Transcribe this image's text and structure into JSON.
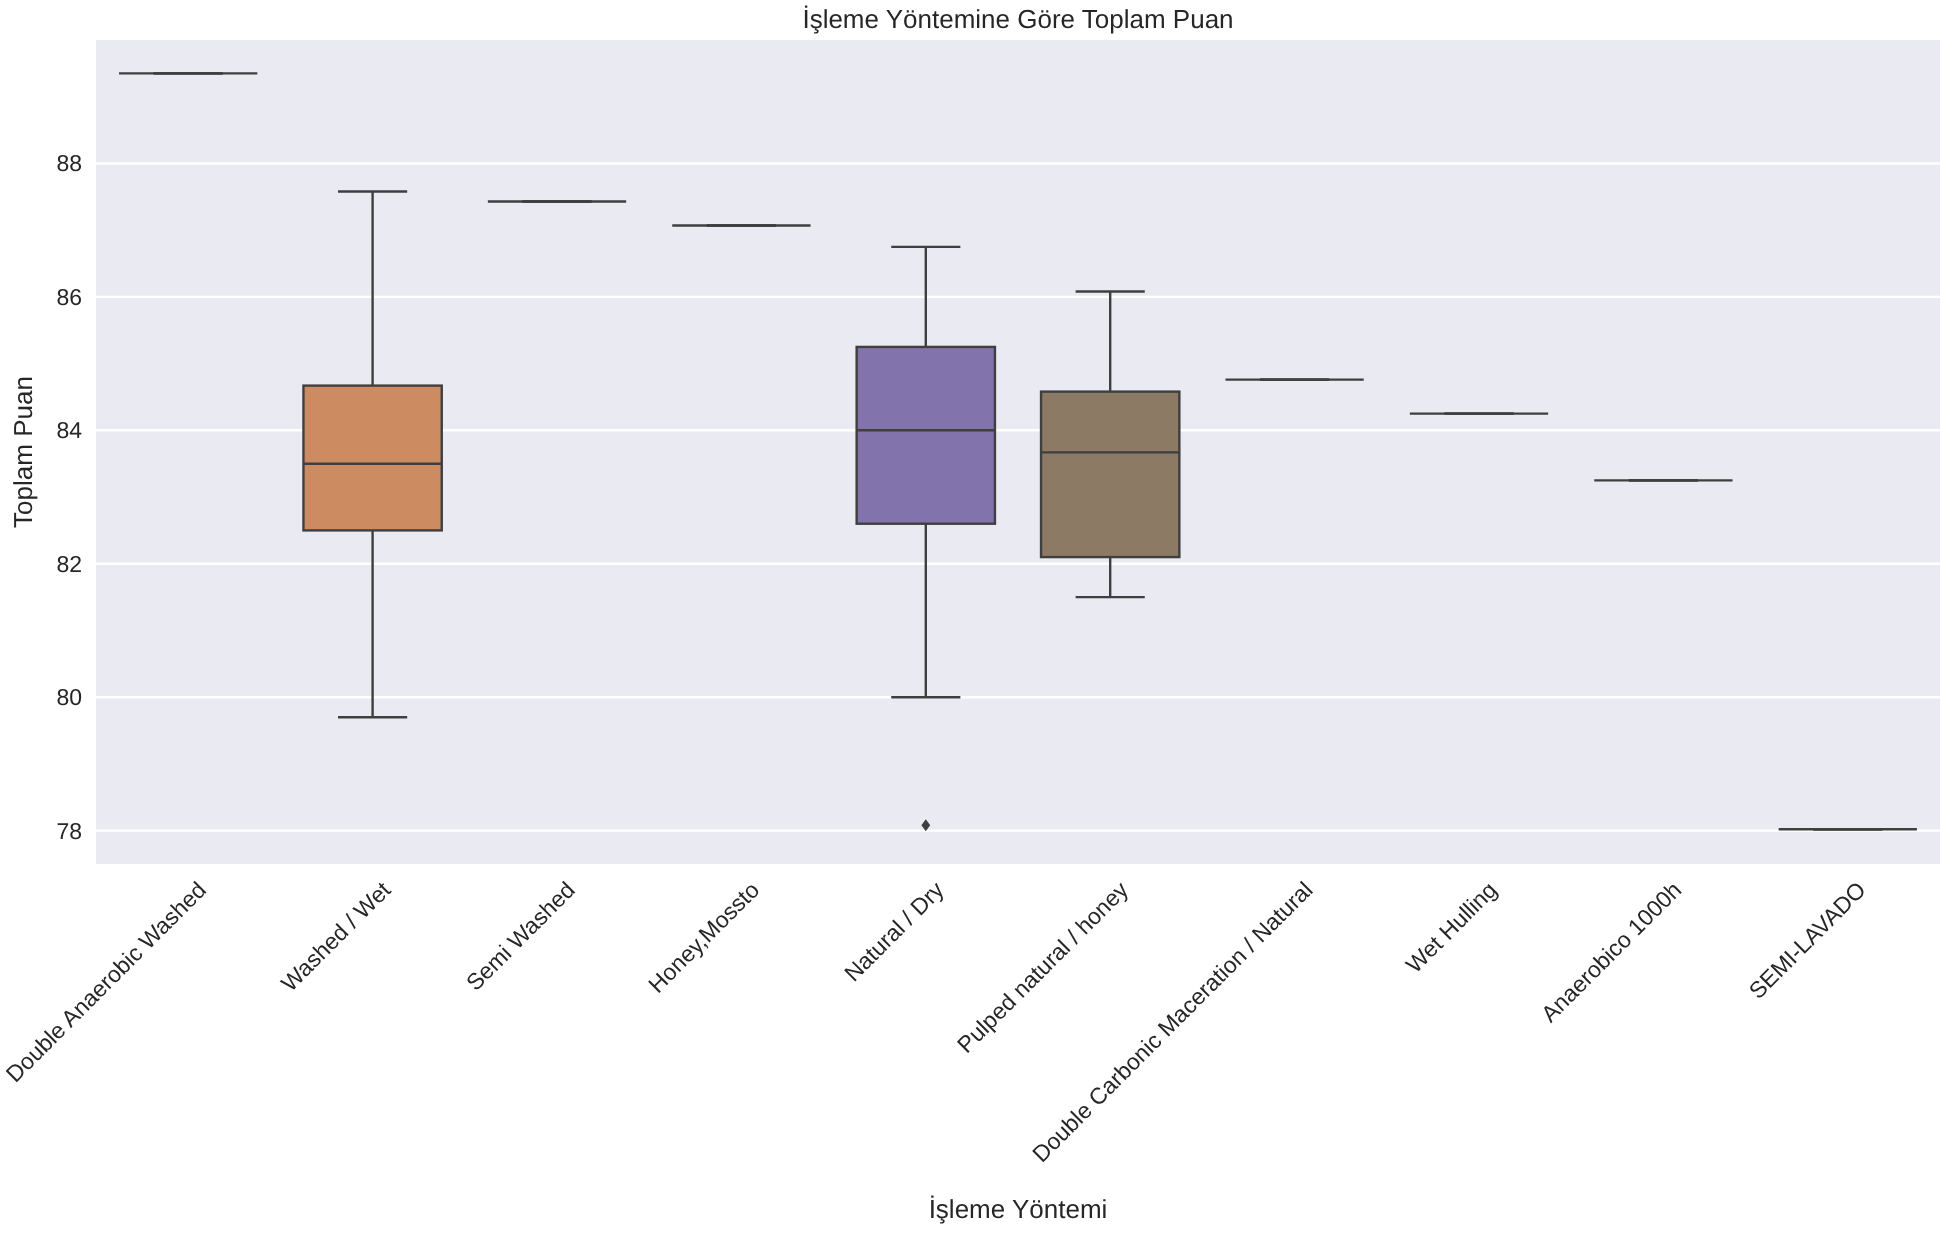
{
  "chart_data": {
    "type": "box",
    "title": "İşleme Yöntemine Göre Toplam Puan",
    "xlabel": "İşleme Yöntemi",
    "ylabel": "Toplam Puan",
    "categories": [
      "Double Anaerobic Washed",
      "Washed / Wet",
      "Semi Washed",
      "Honey,Mossto",
      "Natural / Dry",
      "Pulped natural / honey",
      "Double Carbonic Maceration / Natural",
      "Wet Hulling",
      "Anaerobico 1000h",
      "SEMI-LAVADO"
    ],
    "colors": [
      "#3f3f3f",
      "#cd8b62",
      "#3f3f3f",
      "#3f3f3f",
      "#8373ac",
      "#8c7a65",
      "#3f3f3f",
      "#3f3f3f",
      "#3f3f3f",
      "#3f3f3f"
    ],
    "boxes": [
      {
        "low": 89.35,
        "q1": 89.35,
        "median": 89.35,
        "q3": 89.35,
        "high": 89.35
      },
      {
        "low": 79.7,
        "q1": 82.5,
        "median": 83.5,
        "q3": 84.67,
        "high": 87.58
      },
      {
        "low": 87.43,
        "q1": 87.43,
        "median": 87.43,
        "q3": 87.43,
        "high": 87.43
      },
      {
        "low": 87.07,
        "q1": 87.07,
        "median": 87.07,
        "q3": 87.07,
        "high": 87.07
      },
      {
        "low": 80.0,
        "q1": 82.6,
        "median": 84.0,
        "q3": 85.25,
        "high": 86.75,
        "outliers": [
          78.08
        ]
      },
      {
        "low": 81.5,
        "q1": 82.1,
        "median": 83.67,
        "q3": 84.58,
        "high": 86.08
      },
      {
        "low": 84.76,
        "q1": 84.76,
        "median": 84.76,
        "q3": 84.76,
        "high": 84.76
      },
      {
        "low": 84.25,
        "q1": 84.25,
        "median": 84.25,
        "q3": 84.25,
        "high": 84.25
      },
      {
        "low": 83.25,
        "q1": 83.25,
        "median": 83.25,
        "q3": 83.25,
        "high": 83.25
      },
      {
        "low": 78.02,
        "q1": 78.02,
        "median": 78.02,
        "q3": 78.02,
        "high": 78.02
      }
    ],
    "ylim": [
      77.5,
      89.85
    ],
    "yticks": [
      78,
      80,
      82,
      84,
      86,
      88
    ],
    "grid": "y"
  }
}
